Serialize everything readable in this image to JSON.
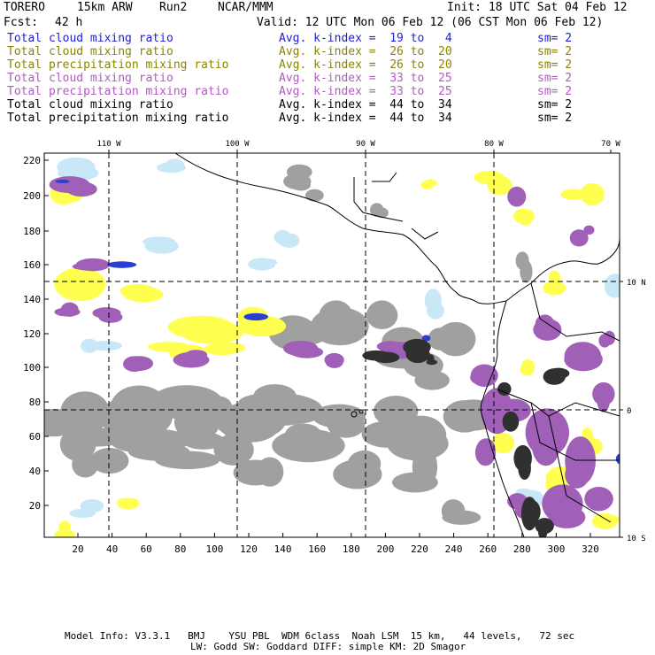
{
  "header": {
    "model": "TORERO",
    "resolution": "15km ARW",
    "run": "Run2",
    "org": "NCAR/MMM",
    "init": "Init: 18 UTC Sat 04 Feb 12",
    "fcst_label": "Fcst:",
    "fcst_value": "42 h",
    "valid": "Valid: 12 UTC Mon 06 Feb 12 (06 CST Mon 06 Feb 12)"
  },
  "legend": [
    {
      "field": "Total cloud mixing ratio",
      "kidx": "Avg. k-index =  19 to   4",
      "sm": "sm= 2",
      "color": "#1f1fd0"
    },
    {
      "field": "Total cloud mixing ratio",
      "kidx": "Avg. k-index =  26 to  20",
      "sm": "sm= 2",
      "color": "#8c8400"
    },
    {
      "field": "Total precipitation mixing ratio",
      "kidx": "Avg. k-index =  26 to  20",
      "sm": "sm= 2",
      "color": "#8c8400"
    },
    {
      "field": "Total cloud mixing ratio",
      "kidx": "Avg. k-index =  33 to  25",
      "sm": "sm= 2",
      "color": "#b05cc0"
    },
    {
      "field": "Total precipitation mixing ratio",
      "kidx": "Avg. k-index =  33 to  25",
      "sm": "sm= 2",
      "color": "#b05cc0"
    },
    {
      "field": "Total cloud mixing ratio",
      "kidx": "Avg. k-index =  44 to  34",
      "sm": "sm= 2",
      "color": "#000000"
    },
    {
      "field": "Total precipitation mixing ratio",
      "kidx": "Avg. k-index =  44 to  34",
      "sm": "sm= 2",
      "color": "#000000"
    }
  ],
  "axes": {
    "top_lon": [
      "110 W",
      "100 W",
      "90 W",
      "80 W",
      "70 W"
    ],
    "right_lat": [
      "10 N",
      "0",
      "10 S"
    ],
    "left_y": [
      "220",
      "200",
      "180",
      "160",
      "140",
      "120",
      "100",
      "80",
      "60",
      "40",
      "20"
    ],
    "bottom_x": [
      "20",
      "40",
      "60",
      "80",
      "100",
      "120",
      "140",
      "160",
      "180",
      "200",
      "220",
      "240",
      "260",
      "280",
      "300",
      "320"
    ]
  },
  "footer": {
    "line1": "Model Info: V3.3.1   BMJ    YSU PBL  WDM 6class  Noah LSM  15 km,   44 levels,   72 sec",
    "line2": "LW: Godd SW: Goddard DIFF: simple KM: 2D Smagor"
  },
  "colors": {
    "gray": "#a0a0a0",
    "dark": "#303030",
    "yellow": "#ffff50",
    "purple": "#a060b8",
    "lightblue": "#c8e8f8",
    "blue": "#2a3fd0"
  }
}
